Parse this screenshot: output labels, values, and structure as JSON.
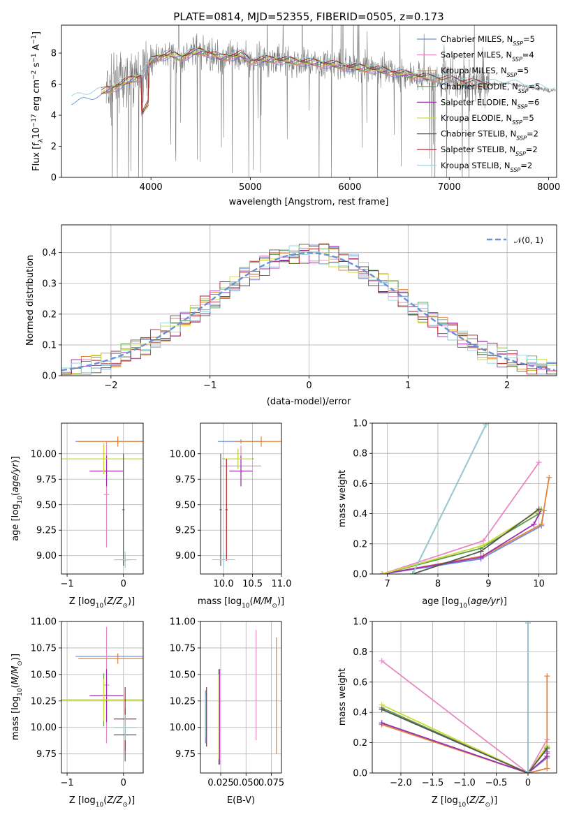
{
  "title": "PLATE=0814, MJD=52355, FIBERID=0505, z=0.173",
  "colors": {
    "cm": "#6b8fd4",
    "sm": "#e78ac3",
    "km": "#e3843c",
    "ce": "#5a9e4a",
    "se": "#9e30b0",
    "ke": "#cddc39",
    "cs": "#555555",
    "ss": "#b22222",
    "ks": "#92d2dc",
    "data": "#7a7a7a",
    "normal": "#6b8fd4"
  },
  "chart_data": [
    {
      "id": "spectrum",
      "type": "line",
      "title": "PLATE=0814, MJD=52355, FIBERID=0505, z=0.173",
      "xlabel": "wavelength [Angstrom, rest frame]",
      "ylabel": "Flux [f_λ10^-17 erg cm^-2 s^-1 A^-1]",
      "xlim": [
        3100,
        8080
      ],
      "ylim": [
        0,
        9.8
      ],
      "xticks": [
        4000,
        5000,
        6000,
        7000,
        8000
      ],
      "yticks": [
        0,
        2,
        4,
        6,
        8
      ],
      "legend": "top-right",
      "series": [
        {
          "name": "Chabrier MILES, N_SSP=5",
          "key": "cm"
        },
        {
          "name": "Salpeter MILES, N_SSP=4",
          "key": "sm"
        },
        {
          "name": "Kroupa MILES, N_SSP=5",
          "key": "km"
        },
        {
          "name": "Chabrier ELODIE, N_SSP=5",
          "key": "ce"
        },
        {
          "name": "Salpeter ELODIE, N_SSP=6",
          "key": "se"
        },
        {
          "name": "Kroupa ELODIE, N_SSP=5",
          "key": "ke"
        },
        {
          "name": "Chabrier STELIB, N_SSP=2",
          "key": "cs"
        },
        {
          "name": "Salpeter STELIB, N_SSP=2",
          "key": "ss"
        },
        {
          "name": "Kroupa STELIB, N_SSP=2",
          "key": "ks"
        }
      ],
      "model_continuum": {
        "x": [
          3200,
          3300,
          3400,
          3500,
          3600,
          3700,
          3800,
          3900,
          4000,
          4100,
          4200,
          4300,
          4400,
          4500,
          4600,
          4700,
          4800,
          4900,
          5000,
          5200,
          5400,
          5600,
          5800,
          6000,
          6200,
          6400,
          6600,
          6800,
          7000,
          7200,
          7400,
          7600,
          7800,
          8000
        ],
        "y": [
          5.0,
          5.2,
          5.3,
          5.5,
          5.7,
          6.0,
          6.3,
          6.5,
          7.5,
          7.8,
          7.9,
          7.7,
          8.0,
          8.1,
          8.0,
          7.7,
          7.8,
          7.9,
          7.5,
          7.6,
          7.5,
          7.4,
          7.3,
          7.1,
          7.0,
          6.8,
          6.6,
          6.4,
          6.3,
          6.1,
          6.0,
          6.0,
          5.8,
          5.6
        ]
      }
    },
    {
      "id": "residuals",
      "type": "line",
      "xlabel": "(data-model)/error",
      "ylabel": "Normed distribution",
      "xlim": [
        -2.5,
        2.5
      ],
      "ylim": [
        0,
        0.49
      ],
      "xticks": [
        -2,
        -1,
        0,
        1,
        2
      ],
      "yticks": [
        0.0,
        0.1,
        0.2,
        0.3,
        0.4
      ],
      "legend_label": "𝒩(0, 1)",
      "legend": "top-right"
    },
    {
      "id": "age_vs_Z",
      "type": "scatter",
      "xlabel": "Z [log10(Z/Z⊙)]",
      "ylabel": "age [log10(age/yr)]",
      "xlim": [
        -1.1,
        0.35
      ],
      "ylim": [
        8.82,
        10.3
      ],
      "xticks": [
        -1,
        0
      ],
      "yticks": [
        9.0,
        9.25,
        9.5,
        9.75,
        10.0
      ],
      "points": [
        {
          "key": "cm",
          "x": -0.1,
          "y": 10.12,
          "xerr": 0.75,
          "yerr": 0.02
        },
        {
          "key": "sm",
          "x": -0.3,
          "y": 9.6,
          "xerr": 0.05,
          "yerr": 0.52
        },
        {
          "key": "km",
          "x": -0.1,
          "y": 10.12,
          "xerr": 0.7,
          "yerr": 0.05
        },
        {
          "key": "ce",
          "x": -0.35,
          "y": 9.95,
          "xerr": 1.0,
          "yerr": 0.15
        },
        {
          "key": "se",
          "x": -0.3,
          "y": 9.83,
          "xerr": 0.3,
          "yerr": 0.15
        },
        {
          "key": "ke",
          "x": -0.35,
          "y": 9.95,
          "xerr": 0.95,
          "yerr": 0.15
        },
        {
          "key": "cs",
          "x": 0.0,
          "y": 9.45,
          "xerr": 0.02,
          "yerr": 0.55
        },
        {
          "key": "ss",
          "x": 0.03,
          "y": 8.96,
          "xerr": 0.1,
          "yerr": 0.02
        },
        {
          "key": "ks",
          "x": 0.03,
          "y": 8.96,
          "xerr": 0.2,
          "yerr": 0.08
        }
      ]
    },
    {
      "id": "age_vs_mass",
      "type": "scatter",
      "xlabel": "mass [log10(M/M⊙)]",
      "ylabel": "",
      "xlim": [
        9.6,
        11.0
      ],
      "ylim": [
        8.82,
        10.3
      ],
      "xticks": [
        10.0,
        10.5,
        11.0
      ],
      "yticks": [
        9.0,
        9.25,
        9.5,
        9.75,
        10.0
      ],
      "points": [
        {
          "key": "cm",
          "x": 10.3,
          "y": 10.12,
          "xerr": 0.4,
          "yerr": 0.02
        },
        {
          "key": "sm",
          "x": 10.3,
          "y": 9.88,
          "xerr": 0.35,
          "yerr": 0.2
        },
        {
          "key": "km",
          "x": 10.65,
          "y": 10.12,
          "xerr": 0.45,
          "yerr": 0.05
        },
        {
          "key": "ce",
          "x": 10.25,
          "y": 9.95,
          "xerr": 0.27,
          "yerr": 0.1
        },
        {
          "key": "se",
          "x": 10.3,
          "y": 9.83,
          "xerr": 0.2,
          "yerr": 0.15
        },
        {
          "key": "ke",
          "x": 10.25,
          "y": 9.95,
          "xerr": 0.25,
          "yerr": 0.1
        },
        {
          "key": "cs",
          "x": 9.95,
          "y": 9.45,
          "xerr": 0.02,
          "yerr": 0.55
        },
        {
          "key": "ss",
          "x": 10.05,
          "y": 9.45,
          "xerr": 0.02,
          "yerr": 0.5
        },
        {
          "key": "ks",
          "x": 10.0,
          "y": 8.96,
          "xerr": 0.2,
          "yerr": 0.08
        }
      ]
    },
    {
      "id": "weight_vs_age",
      "type": "line",
      "xlabel": "age [log10(age/yr)]",
      "ylabel": "mass weight",
      "xlim": [
        6.7,
        10.35
      ],
      "ylim": [
        0,
        1.0
      ],
      "xticks": [
        7,
        8,
        9,
        10
      ],
      "yticks": [
        0.0,
        0.2,
        0.4,
        0.6,
        0.8,
        1.0
      ],
      "series": [
        {
          "key": "cm",
          "x": [
            6.9,
            8.85,
            10.05,
            10.1
          ],
          "y": [
            0.0,
            0.1,
            0.32,
            0.42
          ]
        },
        {
          "key": "sm",
          "x": [
            6.9,
            8.9,
            10.0
          ],
          "y": [
            0.0,
            0.22,
            0.74
          ]
        },
        {
          "key": "km",
          "x": [
            6.9,
            8.9,
            10.05,
            10.2
          ],
          "y": [
            0.0,
            0.12,
            0.33,
            0.64
          ]
        },
        {
          "key": "ce",
          "x": [
            6.9,
            8.85,
            10.0
          ],
          "y": [
            0.0,
            0.17,
            0.4
          ]
        },
        {
          "key": "se",
          "x": [
            6.9,
            8.85,
            9.9,
            10.05
          ],
          "y": [
            0.0,
            0.11,
            0.33,
            0.43
          ]
        },
        {
          "key": "ke",
          "x": [
            6.9,
            8.9,
            10.05
          ],
          "y": [
            0.0,
            0.19,
            0.43
          ]
        },
        {
          "key": "cs",
          "x": [
            7.5,
            8.85,
            10.0
          ],
          "y": [
            0.0,
            0.15,
            0.43
          ]
        },
        {
          "key": "ss",
          "x": [
            7.5,
            8.95
          ],
          "y": [
            0.0,
            0.99
          ]
        },
        {
          "key": "ks",
          "x": [
            7.5,
            8.95
          ],
          "y": [
            0.0,
            0.99
          ]
        }
      ]
    },
    {
      "id": "mass_vs_Z",
      "type": "scatter",
      "xlabel": "Z [log10(Z/Z⊙)]",
      "ylabel": "mass [log10(M/M⊙)]",
      "xlim": [
        -1.1,
        0.35
      ],
      "ylim": [
        9.57,
        11.0
      ],
      "xticks": [
        -1,
        0
      ],
      "yticks": [
        9.75,
        10.0,
        10.25,
        10.5,
        10.75,
        11.0
      ],
      "points": [
        {
          "key": "cm",
          "x": -0.1,
          "y": 10.67,
          "xerr": 0.75,
          "yerr": 0.02
        },
        {
          "key": "sm",
          "x": -0.3,
          "y": 10.4,
          "xerr": 0.05,
          "yerr": 0.55
        },
        {
          "key": "km",
          "x": -0.1,
          "y": 10.65,
          "xerr": 0.7,
          "yerr": 0.05
        },
        {
          "key": "ce",
          "x": -0.35,
          "y": 10.26,
          "xerr": 1.0,
          "yerr": 0.25
        },
        {
          "key": "se",
          "x": -0.3,
          "y": 10.3,
          "xerr": 0.3,
          "yerr": 0.25
        },
        {
          "key": "ke",
          "x": -0.35,
          "y": 10.26,
          "xerr": 0.95,
          "yerr": 0.2
        },
        {
          "key": "cs",
          "x": 0.03,
          "y": 9.93,
          "xerr": 0.2,
          "yerr": 0.25
        },
        {
          "key": "ss",
          "x": 0.03,
          "y": 10.08,
          "xerr": 0.2,
          "yerr": 0.3
        },
        {
          "key": "ks",
          "x": 0.03,
          "y": 10.0,
          "xerr": 0.2,
          "yerr": 0.12
        }
      ]
    },
    {
      "id": "mass_vs_ebv",
      "type": "scatter",
      "xlabel": "E(B-V)",
      "ylabel": "",
      "xlim": [
        0.005,
        0.085
      ],
      "ylim": [
        9.57,
        11.0
      ],
      "xticks": [
        0.025,
        0.05,
        0.075
      ],
      "yticks": [
        9.75,
        10.0,
        10.25,
        10.5,
        10.75,
        11.0
      ],
      "points": [
        {
          "key": "cm",
          "x": 0.01,
          "y": 10.1,
          "xerr": 0.0,
          "yerr": 0.25
        },
        {
          "key": "sm",
          "x": 0.06,
          "y": 10.4,
          "xerr": 0.0,
          "yerr": 0.52
        },
        {
          "key": "km",
          "x": 0.08,
          "y": 10.3,
          "xerr": 0.0,
          "yerr": 0.55
        },
        {
          "key": "ce",
          "x": 0.023,
          "y": 10.1,
          "xerr": 0.0,
          "yerr": 0.45
        },
        {
          "key": "se",
          "x": 0.024,
          "y": 10.1,
          "xerr": 0.0,
          "yerr": 0.45
        },
        {
          "key": "ke",
          "x": 0.023,
          "y": 10.1,
          "xerr": 0.0,
          "yerr": 0.4
        },
        {
          "key": "cs",
          "x": 0.01,
          "y": 10.1,
          "xerr": 0.0,
          "yerr": 0.2
        },
        {
          "key": "ss",
          "x": 0.011,
          "y": 10.1,
          "xerr": 0.0,
          "yerr": 0.28
        },
        {
          "key": "ks",
          "x": 0.01,
          "y": 10.1,
          "xerr": 0.0,
          "yerr": 0.2
        }
      ]
    },
    {
      "id": "weight_vs_Z",
      "type": "line",
      "xlabel": "Z [log10(Z/Z⊙)]",
      "ylabel": "mass weight",
      "xlim": [
        -2.45,
        0.45
      ],
      "ylim": [
        0,
        1.0
      ],
      "xticks": [
        -2.0,
        -1.5,
        -1.0,
        -0.5,
        0.0
      ],
      "yticks": [
        0.0,
        0.2,
        0.4,
        0.6,
        0.8,
        1.0
      ],
      "series": [
        {
          "key": "cm",
          "x": [
            -2.3,
            0.0,
            0.3,
            0.3
          ],
          "y": [
            0.33,
            0.0,
            0.1,
            0.14
          ]
        },
        {
          "key": "sm",
          "x": [
            -2.3,
            0.0,
            0.3
          ],
          "y": [
            0.74,
            0.0,
            0.22
          ]
        },
        {
          "key": "km",
          "x": [
            -2.3,
            0.0,
            0.3,
            0.3
          ],
          "y": [
            0.32,
            0.0,
            0.03,
            0.64
          ]
        },
        {
          "key": "ce",
          "x": [
            -2.3,
            0.0,
            0.3
          ],
          "y": [
            0.43,
            0.0,
            0.17
          ]
        },
        {
          "key": "se",
          "x": [
            -2.3,
            0.0,
            0.3,
            0.3
          ],
          "y": [
            0.33,
            0.0,
            0.11,
            0.13
          ]
        },
        {
          "key": "ke",
          "x": [
            -2.3,
            0.0,
            0.3
          ],
          "y": [
            0.45,
            0.0,
            0.18
          ]
        },
        {
          "key": "cs",
          "x": [
            -2.3,
            0.0,
            0.3
          ],
          "y": [
            0.42,
            0.0,
            0.16
          ]
        },
        {
          "key": "ss",
          "x": [
            0.0,
            0.0
          ],
          "y": [
            0.01,
            0.99
          ]
        },
        {
          "key": "ks",
          "x": [
            0.0,
            0.0
          ],
          "y": [
            0.01,
            0.99
          ]
        }
      ]
    }
  ]
}
